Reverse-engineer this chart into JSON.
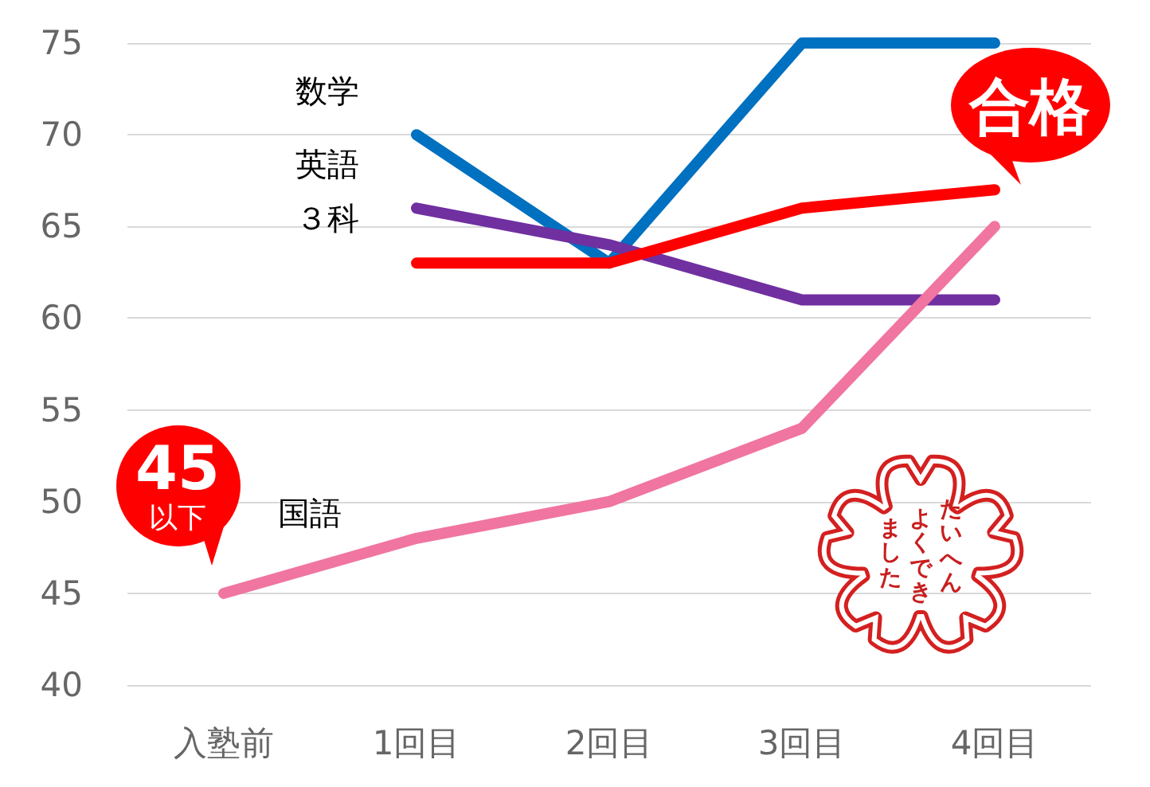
{
  "chart_data": {
    "type": "line",
    "categories": [
      "入塾前",
      "1回目",
      "2回目",
      "3回目",
      "4回目"
    ],
    "series": [
      {
        "name": "数学",
        "color": "#0070c0",
        "values": [
          null,
          70,
          63,
          75,
          75
        ]
      },
      {
        "name": "英語",
        "color": "#7030a0",
        "values": [
          null,
          66,
          64,
          61,
          61
        ]
      },
      {
        "name": "３科",
        "color": "#ff0000",
        "values": [
          null,
          63,
          63,
          66,
          67
        ]
      },
      {
        "name": "国語",
        "color": "#f075a0",
        "values": [
          45,
          48,
          50,
          54,
          65
        ]
      }
    ],
    "ylim": [
      40,
      75
    ],
    "yticks": [
      40,
      45,
      50,
      55,
      60,
      65,
      70,
      75
    ],
    "grid": "y",
    "legend": false,
    "marker": "none",
    "line_style": "solid",
    "annotations": [
      {
        "text": "45\n以下",
        "x": "入塾前",
        "y": 45
      },
      {
        "text": "合格",
        "x": "4回目",
        "y": 65
      },
      "たいへんよくできました"
    ]
  }
}
